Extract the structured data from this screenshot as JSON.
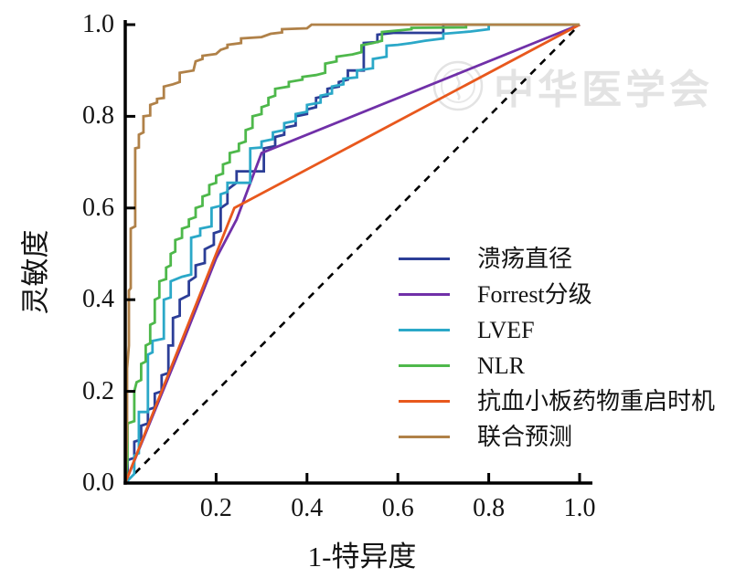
{
  "watermark": {
    "text": "中华医学会",
    "emblem": "medical-association-circle-emblem",
    "color": "#e3e3e3"
  },
  "chart_data": {
    "type": "line",
    "subtype": "roc-curves",
    "title": "",
    "xlabel": "1-特异度",
    "ylabel": "灵敏度",
    "xlim": [
      0,
      1
    ],
    "ylim": [
      0,
      1
    ],
    "grid": false,
    "legend_position": "inside-right-middle",
    "x_ticks": [
      "0.2",
      "0.4",
      "0.6",
      "0.8",
      "1.0"
    ],
    "x_tick_values": [
      0.2,
      0.4,
      0.6,
      0.8,
      1.0
    ],
    "y_ticks": [
      "0.0",
      "0.2",
      "0.4",
      "0.6",
      "0.8",
      "1.0"
    ],
    "y_tick_values": [
      0,
      0.2,
      0.4,
      0.6,
      0.8,
      1.0
    ],
    "axis_color": "#000000",
    "reference_line": {
      "name": "chance-diagonal",
      "style": "dashed",
      "color": "#000000",
      "points": [
        [
          0,
          0
        ],
        [
          1,
          1
        ]
      ]
    },
    "series": [
      {
        "id": "ulcer-diameter",
        "name": "溃疡直径",
        "color": "#2c3e97",
        "points": [
          [
            0,
            0
          ],
          [
            0.005,
            0.02
          ],
          [
            0.005,
            0.05
          ],
          [
            0.02,
            0.055
          ],
          [
            0.02,
            0.09
          ],
          [
            0.035,
            0.095
          ],
          [
            0.035,
            0.125
          ],
          [
            0.05,
            0.13
          ],
          [
            0.05,
            0.16
          ],
          [
            0.065,
            0.165
          ],
          [
            0.065,
            0.195
          ],
          [
            0.08,
            0.2
          ],
          [
            0.08,
            0.235
          ],
          [
            0.095,
            0.24
          ],
          [
            0.095,
            0.3
          ],
          [
            0.105,
            0.3
          ],
          [
            0.105,
            0.36
          ],
          [
            0.12,
            0.365
          ],
          [
            0.12,
            0.4
          ],
          [
            0.14,
            0.41
          ],
          [
            0.14,
            0.44
          ],
          [
            0.155,
            0.45
          ],
          [
            0.155,
            0.475
          ],
          [
            0.175,
            0.48
          ],
          [
            0.175,
            0.51
          ],
          [
            0.195,
            0.52
          ],
          [
            0.195,
            0.545
          ],
          [
            0.21,
            0.55
          ],
          [
            0.21,
            0.6
          ],
          [
            0.225,
            0.61
          ],
          [
            0.225,
            0.64
          ],
          [
            0.245,
            0.655
          ],
          [
            0.245,
            0.68
          ],
          [
            0.305,
            0.68
          ],
          [
            0.305,
            0.73
          ],
          [
            0.33,
            0.735
          ],
          [
            0.33,
            0.755
          ],
          [
            0.35,
            0.76
          ],
          [
            0.35,
            0.775
          ],
          [
            0.375,
            0.78
          ],
          [
            0.375,
            0.8
          ],
          [
            0.4,
            0.805
          ],
          [
            0.4,
            0.815
          ],
          [
            0.42,
            0.82
          ],
          [
            0.42,
            0.84
          ],
          [
            0.445,
            0.845
          ],
          [
            0.445,
            0.86
          ],
          [
            0.47,
            0.865
          ],
          [
            0.47,
            0.875
          ],
          [
            0.49,
            0.88
          ],
          [
            0.49,
            0.9
          ],
          [
            0.525,
            0.9
          ],
          [
            0.525,
            0.96
          ],
          [
            0.555,
            0.962
          ],
          [
            0.555,
            0.978
          ],
          [
            0.59,
            0.982
          ],
          [
            0.7,
            0.982
          ],
          [
            0.7,
            1
          ],
          [
            1,
            1
          ]
        ]
      },
      {
        "id": "forrest-grade",
        "name": "Forrest分级",
        "color": "#7030a8",
        "points": [
          [
            0,
            0
          ],
          [
            0.13,
            0.315
          ],
          [
            0.2,
            0.49
          ],
          [
            0.245,
            0.575
          ],
          [
            0.3,
            0.72
          ],
          [
            1,
            1
          ]
        ]
      },
      {
        "id": "lvef",
        "name": "LVEF",
        "color": "#2ba8c8",
        "points": [
          [
            0,
            0
          ],
          [
            0.02,
            0.02
          ],
          [
            0.02,
            0.06
          ],
          [
            0.03,
            0.065
          ],
          [
            0.03,
            0.155
          ],
          [
            0.05,
            0.155
          ],
          [
            0.05,
            0.28
          ],
          [
            0.06,
            0.285
          ],
          [
            0.06,
            0.31
          ],
          [
            0.085,
            0.315
          ],
          [
            0.085,
            0.4
          ],
          [
            0.1,
            0.405
          ],
          [
            0.1,
            0.44
          ],
          [
            0.125,
            0.45
          ],
          [
            0.145,
            0.455
          ],
          [
            0.145,
            0.535
          ],
          [
            0.165,
            0.54
          ],
          [
            0.165,
            0.555
          ],
          [
            0.19,
            0.56
          ],
          [
            0.19,
            0.6
          ],
          [
            0.21,
            0.605
          ],
          [
            0.21,
            0.63
          ],
          [
            0.225,
            0.635
          ],
          [
            0.225,
            0.655
          ],
          [
            0.275,
            0.655
          ],
          [
            0.275,
            0.73
          ],
          [
            0.3,
            0.732
          ],
          [
            0.3,
            0.745
          ],
          [
            0.325,
            0.75
          ],
          [
            0.325,
            0.765
          ],
          [
            0.35,
            0.77
          ],
          [
            0.35,
            0.785
          ],
          [
            0.375,
            0.79
          ],
          [
            0.375,
            0.805
          ],
          [
            0.4,
            0.81
          ],
          [
            0.4,
            0.825
          ],
          [
            0.43,
            0.83
          ],
          [
            0.43,
            0.845
          ],
          [
            0.455,
            0.85
          ],
          [
            0.455,
            0.865
          ],
          [
            0.48,
            0.87
          ],
          [
            0.48,
            0.882
          ],
          [
            0.51,
            0.885
          ],
          [
            0.51,
            0.9
          ],
          [
            0.545,
            0.905
          ],
          [
            0.545,
            0.925
          ],
          [
            0.575,
            0.93
          ],
          [
            0.575,
            0.954
          ],
          [
            0.6,
            0.956
          ],
          [
            0.63,
            0.96
          ],
          [
            0.66,
            0.965
          ],
          [
            0.7,
            0.97
          ],
          [
            0.7,
            0.98
          ],
          [
            0.76,
            0.985
          ],
          [
            0.8,
            0.99
          ],
          [
            0.8,
            1
          ],
          [
            1,
            1
          ]
        ]
      },
      {
        "id": "nlr",
        "name": "NLR",
        "color": "#4eb84b",
        "points": [
          [
            0,
            0
          ],
          [
            0.005,
            0.05
          ],
          [
            0.005,
            0.13
          ],
          [
            0.02,
            0.135
          ],
          [
            0.02,
            0.2
          ],
          [
            0.025,
            0.22
          ],
          [
            0.035,
            0.225
          ],
          [
            0.035,
            0.26
          ],
          [
            0.045,
            0.265
          ],
          [
            0.045,
            0.3
          ],
          [
            0.055,
            0.305
          ],
          [
            0.055,
            0.345
          ],
          [
            0.065,
            0.35
          ],
          [
            0.065,
            0.4
          ],
          [
            0.075,
            0.405
          ],
          [
            0.075,
            0.44
          ],
          [
            0.09,
            0.445
          ],
          [
            0.09,
            0.47
          ],
          [
            0.1,
            0.475
          ],
          [
            0.1,
            0.5
          ],
          [
            0.11,
            0.505
          ],
          [
            0.11,
            0.53
          ],
          [
            0.125,
            0.535
          ],
          [
            0.125,
            0.555
          ],
          [
            0.14,
            0.56
          ],
          [
            0.14,
            0.575
          ],
          [
            0.155,
            0.58
          ],
          [
            0.155,
            0.6
          ],
          [
            0.17,
            0.605
          ],
          [
            0.17,
            0.625
          ],
          [
            0.185,
            0.63
          ],
          [
            0.185,
            0.65
          ],
          [
            0.2,
            0.655
          ],
          [
            0.2,
            0.67
          ],
          [
            0.215,
            0.675
          ],
          [
            0.215,
            0.695
          ],
          [
            0.23,
            0.7
          ],
          [
            0.23,
            0.72
          ],
          [
            0.25,
            0.725
          ],
          [
            0.25,
            0.74
          ],
          [
            0.265,
            0.745
          ],
          [
            0.265,
            0.77
          ],
          [
            0.28,
            0.775
          ],
          [
            0.28,
            0.8
          ],
          [
            0.3,
            0.805
          ],
          [
            0.3,
            0.82
          ],
          [
            0.315,
            0.825
          ],
          [
            0.315,
            0.84
          ],
          [
            0.33,
            0.845
          ],
          [
            0.33,
            0.86
          ],
          [
            0.36,
            0.865
          ],
          [
            0.36,
            0.875
          ],
          [
            0.39,
            0.88
          ],
          [
            0.39,
            0.886
          ],
          [
            0.42,
            0.89
          ],
          [
            0.44,
            0.895
          ],
          [
            0.44,
            0.915
          ],
          [
            0.465,
            0.92
          ],
          [
            0.465,
            0.93
          ],
          [
            0.5,
            0.935
          ],
          [
            0.52,
            0.94
          ],
          [
            0.52,
            0.955
          ],
          [
            0.545,
            0.96
          ],
          [
            0.565,
            0.965
          ],
          [
            0.565,
            0.984
          ],
          [
            0.63,
            0.99
          ],
          [
            0.63,
            0.993
          ],
          [
            0.75,
            0.994
          ],
          [
            0.75,
            1
          ],
          [
            1,
            1
          ]
        ]
      },
      {
        "id": "antiplatelet-restart-timing",
        "name": "抗血小板药物重启时机",
        "color": "#e8581d",
        "points": [
          [
            0,
            0
          ],
          [
            0.24,
            0.6
          ],
          [
            1,
            1
          ]
        ]
      },
      {
        "id": "combined-prediction",
        "name": "联合预测",
        "color": "#b08148",
        "points": [
          [
            0,
            0
          ],
          [
            0.004,
            0.1
          ],
          [
            0.004,
            0.25
          ],
          [
            0.008,
            0.3
          ],
          [
            0.008,
            0.42
          ],
          [
            0.012,
            0.425
          ],
          [
            0.012,
            0.555
          ],
          [
            0.022,
            0.56
          ],
          [
            0.022,
            0.73
          ],
          [
            0.03,
            0.732
          ],
          [
            0.03,
            0.76
          ],
          [
            0.04,
            0.765
          ],
          [
            0.04,
            0.8
          ],
          [
            0.055,
            0.802
          ],
          [
            0.055,
            0.825
          ],
          [
            0.07,
            0.83
          ],
          [
            0.07,
            0.838
          ],
          [
            0.085,
            0.84
          ],
          [
            0.085,
            0.865
          ],
          [
            0.105,
            0.87
          ],
          [
            0.12,
            0.875
          ],
          [
            0.12,
            0.895
          ],
          [
            0.15,
            0.9
          ],
          [
            0.155,
            0.92
          ],
          [
            0.17,
            0.925
          ],
          [
            0.17,
            0.932
          ],
          [
            0.2,
            0.936
          ],
          [
            0.21,
            0.945
          ],
          [
            0.225,
            0.95
          ],
          [
            0.225,
            0.956
          ],
          [
            0.255,
            0.96
          ],
          [
            0.255,
            0.97
          ],
          [
            0.3,
            0.973
          ],
          [
            0.32,
            0.98
          ],
          [
            0.345,
            0.983
          ],
          [
            0.345,
            0.99
          ],
          [
            0.4,
            0.992
          ],
          [
            0.41,
            1
          ],
          [
            1,
            1
          ]
        ]
      }
    ]
  }
}
